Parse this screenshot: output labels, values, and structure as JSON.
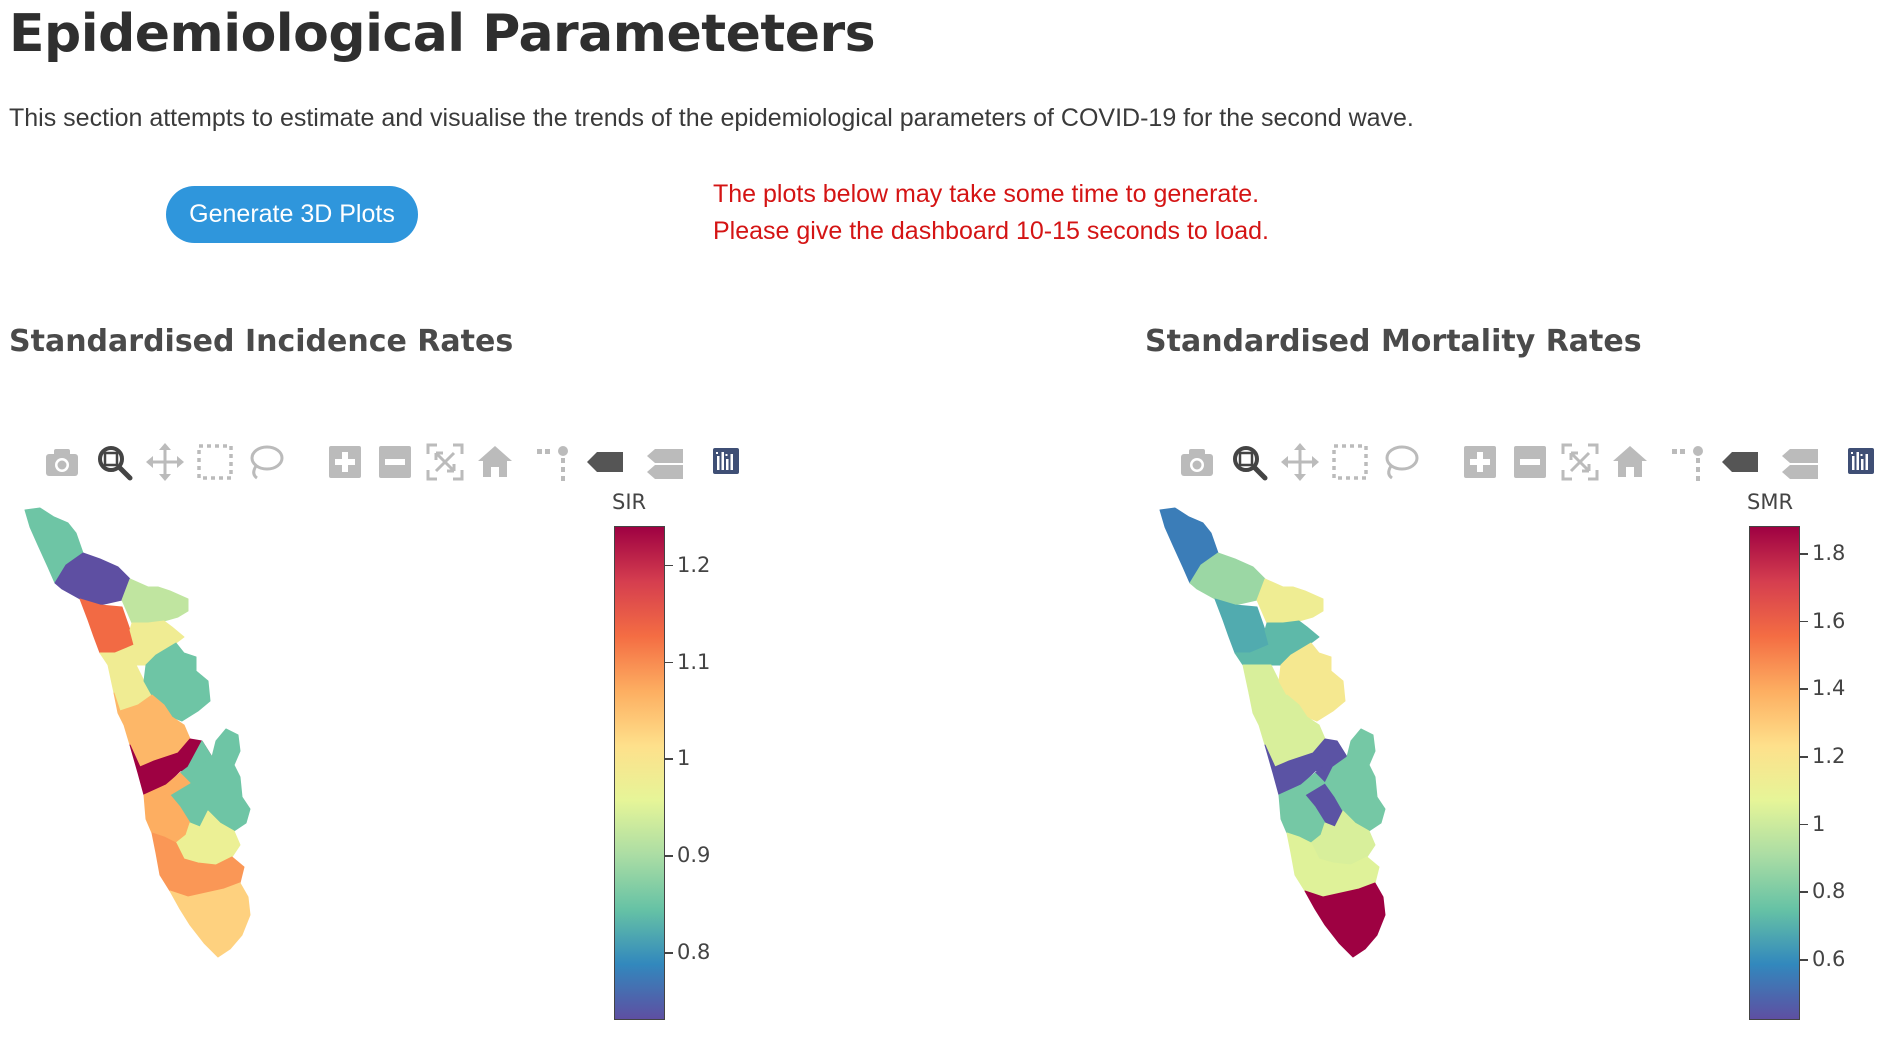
{
  "page": {
    "title": "Epidemiological Parameteters",
    "description": "This section attempts to estimate and visualise the trends of the epidemiological parameters of COVID-19 for the second wave.",
    "generate_button": "Generate 3D Plots",
    "notice_line1": "The plots below may take some time to generate.",
    "notice_line2": "Please give the dashboard 10-15 seconds to load."
  },
  "modebar_icons": [
    "camera-icon",
    "zoom-icon",
    "pan-icon",
    "box-select-icon",
    "lasso-select-icon",
    "zoom-in-icon",
    "zoom-out-icon",
    "autoscale-icon",
    "reset-axes-icon",
    "spike-lines-icon",
    "hover-closest-icon",
    "hover-compare-icon",
    "plotly-logo-icon"
  ],
  "colors": {
    "button": "#2f96dc",
    "notice": "#d41414",
    "colorscale": [
      "#5e4fa2",
      "#3288bd",
      "#66c2a5",
      "#abdda4",
      "#e6f598",
      "#fee08b",
      "#fdae61",
      "#f46d43",
      "#d53e4f",
      "#9e0142"
    ]
  },
  "left_map": {
    "section_title": "Standardised Incidence Rates",
    "colorbar_title": "SIR",
    "ticks": [
      "1.2",
      "1.1",
      "1",
      "0.9",
      "0.8"
    ],
    "range": [
      0.73,
      1.24
    ],
    "district_values": [
      0.85,
      0.73,
      1.13,
      0.92,
      0.98,
      0.98,
      0.85,
      1.06,
      1.24,
      0.85,
      0.85,
      1.07,
      0.97,
      1.09,
      1.03
    ]
  },
  "right_map": {
    "section_title": "Standardised Mortality Rates",
    "colorbar_title": "SMR",
    "ticks": [
      "1.8",
      "1.6",
      "1.4",
      "1.2",
      "1",
      "0.8",
      "0.6"
    ],
    "range": [
      0.42,
      1.88
    ],
    "district_values": [
      0.55,
      0.87,
      0.68,
      1.13,
      0.72,
      1.03,
      1.17,
      1.03,
      0.43,
      0.43,
      0.78,
      0.78,
      1.03,
      1.05,
      1.88
    ]
  }
}
